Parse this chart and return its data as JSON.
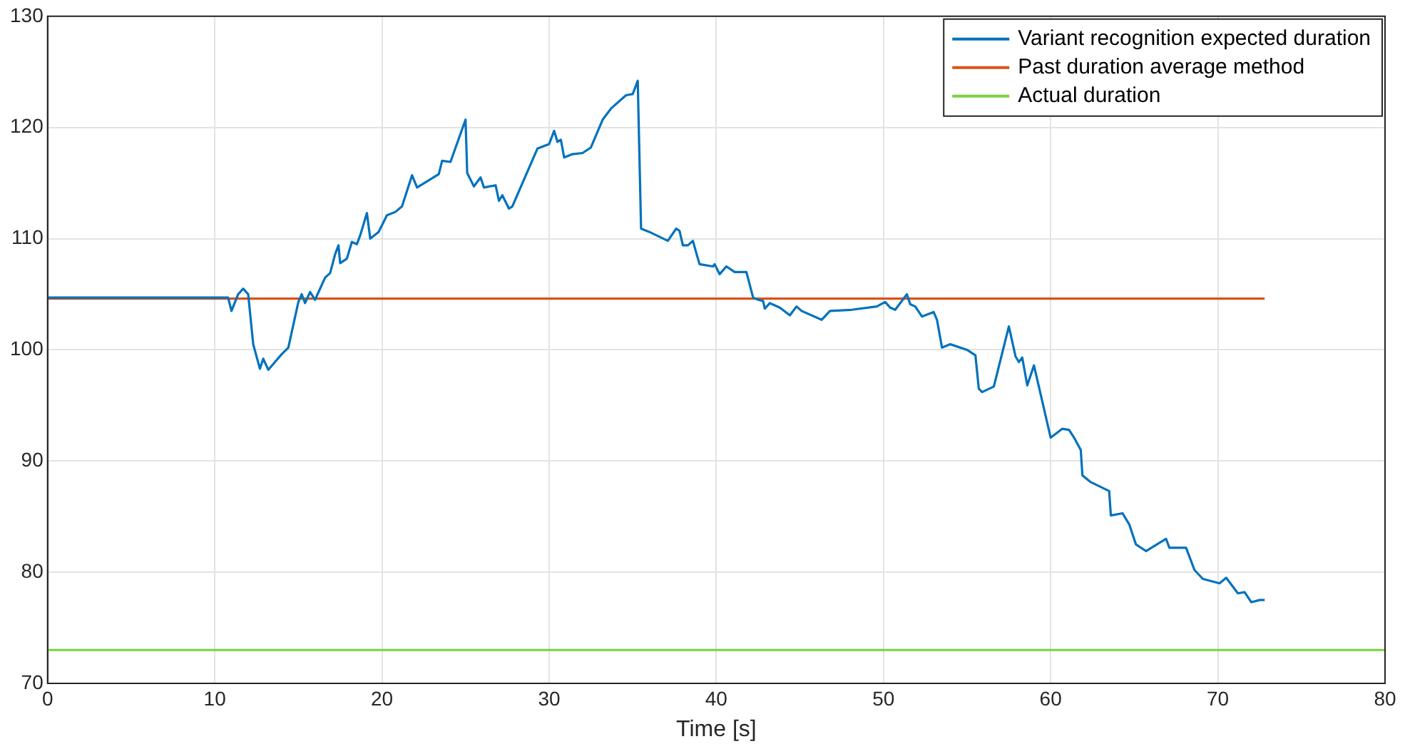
{
  "chart_data": {
    "type": "line",
    "xlabel": "Time [s]",
    "xlim": [
      0,
      80
    ],
    "xticks": [
      0,
      10,
      20,
      30,
      40,
      50,
      60,
      70,
      80
    ],
    "ylim": [
      70,
      130
    ],
    "yticks": [
      70,
      80,
      90,
      100,
      110,
      120,
      130
    ],
    "grid": true,
    "legend": "top right",
    "marker": "none",
    "line_style": "solid",
    "series": [
      {
        "name": "Variant recognition expected duration",
        "color": "#0072bd",
        "x": [
          0,
          10.8,
          11.0,
          11.4,
          11.7,
          12.0,
          12.3,
          12.7,
          12.9,
          13.2,
          13.6,
          14.0,
          14.4,
          15.0,
          15.2,
          15.4,
          15.7,
          16.0,
          16.6,
          16.9,
          17.2,
          17.4,
          17.5,
          17.9,
          18.2,
          18.5,
          18.7,
          19.1,
          19.3,
          19.8,
          20.3,
          20.8,
          21.2,
          21.8,
          22.1,
          23.4,
          23.6,
          24.1,
          25.0,
          25.1,
          25.5,
          25.9,
          26.1,
          26.8,
          27.0,
          27.2,
          27.6,
          27.8,
          29.3,
          30.0,
          30.3,
          30.5,
          30.7,
          30.9,
          31.4,
          32.0,
          32.5,
          33.2,
          33.7,
          34.6,
          35.0,
          35.3,
          35.5,
          36.0,
          37.1,
          37.6,
          37.8,
          38.0,
          38.3,
          38.6,
          38.9,
          39.0,
          39.8,
          39.9,
          40.2,
          40.6,
          41.1,
          41.8,
          42.2,
          42.5,
          42.8,
          42.9,
          43.2,
          43.8,
          44.4,
          44.8,
          45.1,
          46.3,
          46.8,
          48.1,
          49.6,
          50.1,
          50.4,
          50.7,
          51.4,
          51.6,
          51.9,
          52.3,
          53.0,
          53.2,
          53.5,
          54.0,
          55.0,
          55.5,
          55.7,
          55.9,
          56.6,
          57.5,
          57.9,
          58.1,
          58.3,
          58.6,
          59.0,
          60.0,
          60.7,
          61.1,
          61.4,
          61.8,
          61.9,
          62.4,
          63.5,
          63.6,
          64.3,
          64.7,
          65.1,
          65.7,
          66.9,
          67.1,
          68.1,
          68.6,
          69.1,
          70.1,
          70.5,
          71.2,
          71.6,
          72.0,
          72.5,
          72.8
        ],
        "values": [
          104.7,
          104.7,
          103.5,
          105.0,
          105.5,
          105.0,
          100.5,
          98.3,
          99.2,
          98.2,
          98.9,
          99.6,
          100.2,
          104.3,
          105.0,
          104.2,
          105.2,
          104.5,
          106.5,
          106.9,
          108.6,
          109.4,
          107.8,
          108.2,
          109.7,
          109.5,
          110.3,
          112.3,
          110.0,
          110.6,
          112.1,
          112.4,
          112.9,
          115.7,
          114.6,
          115.8,
          117.0,
          116.9,
          120.7,
          115.9,
          114.7,
          115.5,
          114.6,
          114.8,
          113.4,
          113.9,
          112.7,
          112.9,
          118.1,
          118.5,
          119.7,
          118.7,
          118.9,
          117.3,
          117.6,
          117.7,
          118.2,
          120.7,
          121.7,
          122.9,
          123.0,
          124.2,
          110.9,
          110.6,
          109.8,
          110.9,
          110.7,
          109.4,
          109.4,
          109.8,
          108.2,
          107.7,
          107.5,
          107.7,
          106.8,
          107.5,
          107.0,
          107.0,
          104.7,
          104.5,
          104.4,
          103.7,
          104.2,
          103.8,
          103.1,
          103.9,
          103.5,
          102.7,
          103.5,
          103.6,
          103.9,
          104.3,
          103.8,
          103.6,
          105.0,
          104.1,
          103.9,
          103.0,
          103.4,
          102.7,
          100.2,
          100.5,
          100.0,
          99.5,
          96.5,
          96.2,
          96.7,
          102.1,
          99.4,
          98.9,
          99.3,
          96.8,
          98.6,
          92.1,
          92.9,
          92.8,
          92.1,
          91.0,
          88.7,
          88.1,
          87.3,
          85.1,
          85.3,
          84.3,
          82.5,
          81.9,
          83.0,
          82.2,
          82.2,
          80.2,
          79.4,
          79.0,
          79.5,
          78.1,
          78.2,
          77.3,
          77.5,
          77.5
        ]
      },
      {
        "name": "Past duration average method",
        "color": "#d95319",
        "x": [
          0,
          72.8
        ],
        "values": [
          104.6,
          104.6
        ]
      },
      {
        "name": "Actual duration",
        "color": "#77d33e",
        "x": [
          0,
          80
        ],
        "values": [
          73,
          73
        ]
      }
    ]
  }
}
